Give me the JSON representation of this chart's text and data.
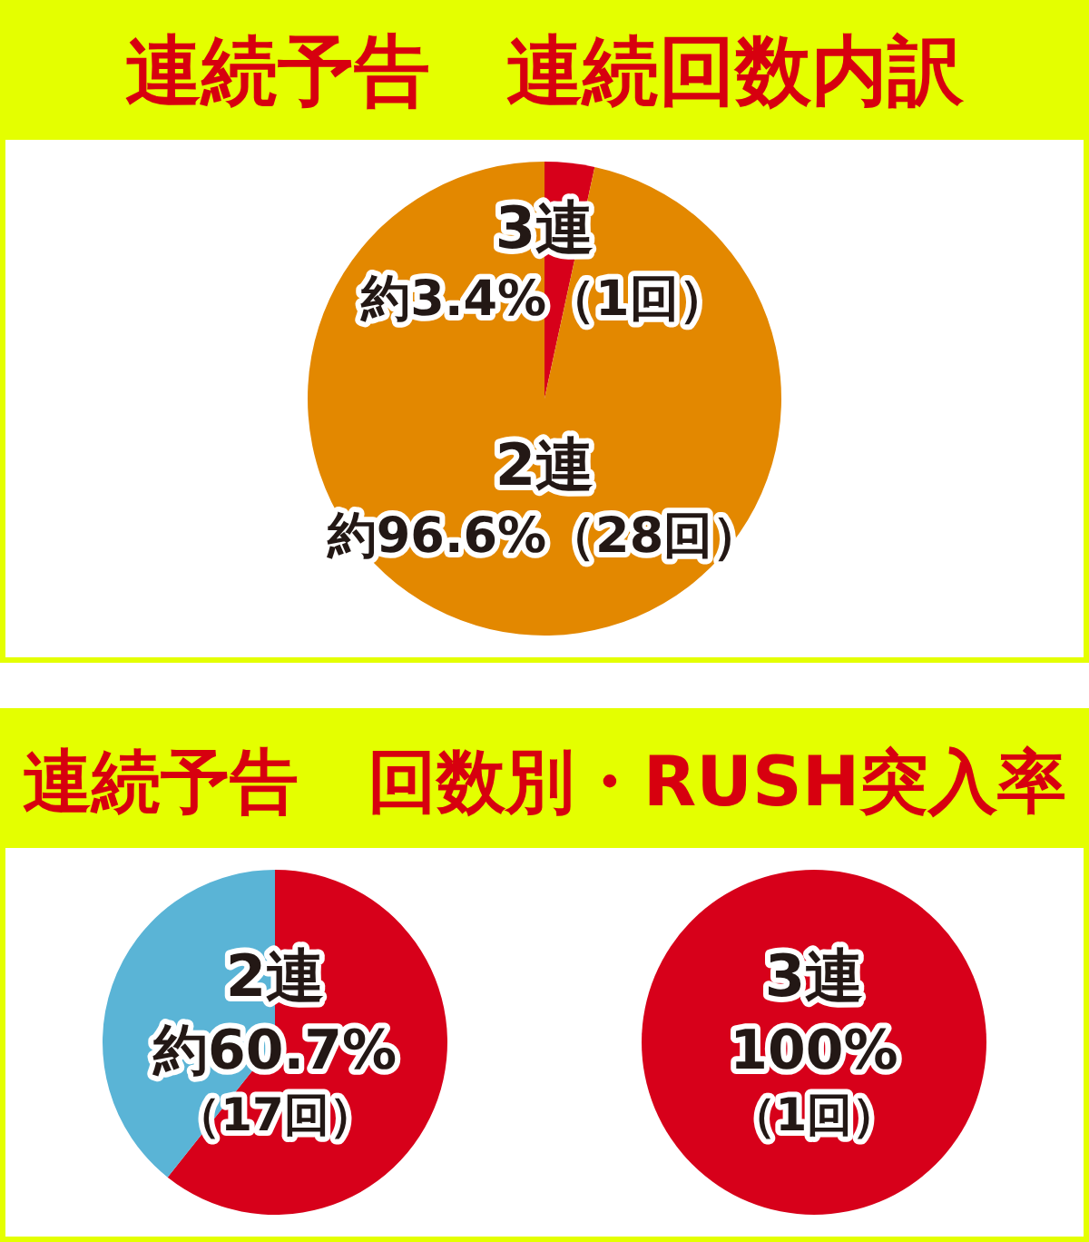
{
  "chart_data": [
    {
      "type": "pie",
      "title": "連続予告　連続回数内訳",
      "categories": [
        "3連",
        "2連"
      ],
      "values": [
        3.4,
        96.6
      ],
      "colors": [
        "#d7001a",
        "#e38800"
      ],
      "value_labels": [
        "約3.4%（1回）",
        "約96.6%（28回）"
      ]
    },
    {
      "type": "pie",
      "title": "連続予告　回数別・RUSH突入率",
      "categories": [
        "2連",
        null
      ],
      "values": [
        60.7,
        39.3
      ],
      "colors": [
        "#d7001a",
        "#5ab4d6"
      ],
      "value_labels": [
        "約60.7%（17回）",
        null
      ]
    },
    {
      "type": "pie",
      "categories": [
        "3連"
      ],
      "values": [
        100
      ],
      "colors": [
        "#d7001a"
      ],
      "value_labels": [
        "100%（1回）"
      ]
    }
  ]
}
